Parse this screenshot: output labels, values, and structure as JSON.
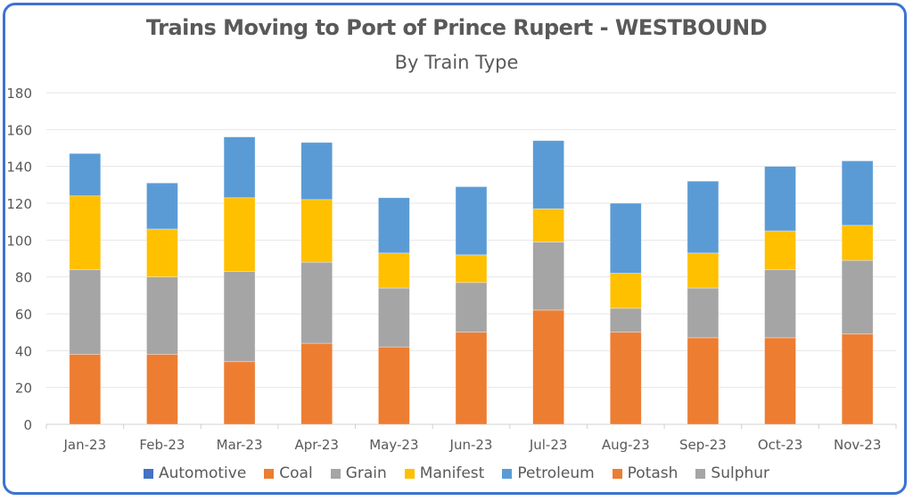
{
  "chart_data": {
    "type": "bar",
    "stacked": true,
    "title": "Trains Moving to Port of Prince Rupert - WESTBOUND",
    "subtitle": "By Train Type",
    "xlabel": "",
    "ylabel": "",
    "ylim": [
      0,
      180
    ],
    "yticks": [
      0,
      20,
      40,
      60,
      80,
      100,
      120,
      140,
      160,
      180
    ],
    "grid": true,
    "legend_position": "bottom",
    "categories": [
      "Jan-23",
      "Feb-23",
      "Mar-23",
      "Apr-23",
      "May-23",
      "Jun-23",
      "Jul-23",
      "Aug-23",
      "Sep-23",
      "Oct-23",
      "Nov-23"
    ],
    "series": [
      {
        "name": "Automotive",
        "color": "#4472c4",
        "values": [
          0,
          0,
          0,
          0,
          0,
          0,
          0,
          0,
          0,
          0,
          0
        ]
      },
      {
        "name": "Coal",
        "color": "#ed7d31",
        "values": [
          38,
          38,
          34,
          44,
          42,
          50,
          62,
          50,
          47,
          47,
          49
        ]
      },
      {
        "name": "Grain",
        "color": "#a5a5a5",
        "values": [
          46,
          42,
          49,
          44,
          32,
          27,
          37,
          13,
          27,
          37,
          40
        ]
      },
      {
        "name": "Manifest",
        "color": "#ffc000",
        "values": [
          40,
          26,
          40,
          34,
          19,
          15,
          18,
          19,
          19,
          21,
          19
        ]
      },
      {
        "name": "Petroleum",
        "color": "#5b9bd5",
        "values": [
          23,
          25,
          33,
          31,
          30,
          37,
          37,
          38,
          39,
          35,
          35
        ]
      },
      {
        "name": "Potash",
        "color": "#ed7d31",
        "values": [
          0,
          0,
          0,
          0,
          0,
          0,
          0,
          0,
          0,
          0,
          0
        ]
      },
      {
        "name": "Sulphur",
        "color": "#a5a5a5",
        "values": [
          0,
          0,
          0,
          0,
          0,
          0,
          0,
          0,
          0,
          0,
          0
        ]
      }
    ]
  }
}
